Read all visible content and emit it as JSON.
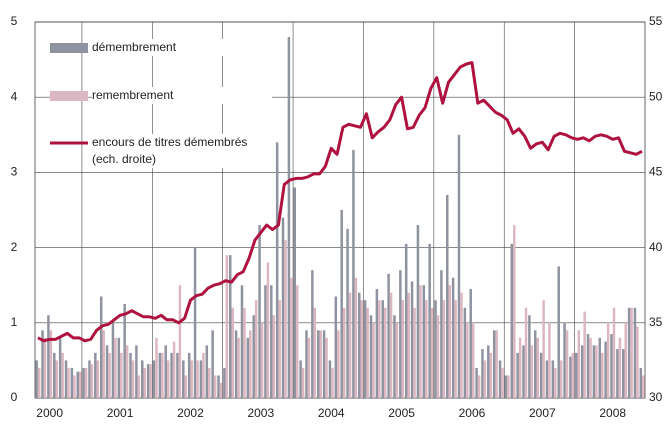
{
  "chart_data": {
    "type": "bar",
    "categories": [
      null,
      null,
      "2000",
      null,
      null,
      null,
      null,
      null,
      null,
      null,
      null,
      null,
      null,
      null,
      "2001",
      null,
      null,
      null,
      null,
      null,
      null,
      null,
      null,
      null,
      null,
      null,
      "2002",
      null,
      null,
      null,
      null,
      null,
      null,
      null,
      null,
      null,
      null,
      null,
      "2003",
      null,
      null,
      null,
      null,
      null,
      null,
      null,
      null,
      null,
      null,
      null,
      "2004",
      null,
      null,
      null,
      null,
      null,
      null,
      null,
      null,
      null,
      null,
      null,
      "2005",
      null,
      null,
      null,
      null,
      null,
      null,
      null,
      null,
      null,
      null,
      null,
      "2006",
      null,
      null,
      null,
      null,
      null,
      null,
      null,
      null,
      null,
      null,
      null,
      "2007",
      null,
      null,
      null,
      null,
      null,
      null,
      null,
      null,
      null,
      null,
      null,
      "2008",
      null,
      null,
      null,
      null,
      null
    ],
    "series": [
      {
        "name": "démembrement",
        "color": "#8e939f",
        "values": [
          0.5,
          0.9,
          1.1,
          0.6,
          0.8,
          0.5,
          0.4,
          0.35,
          0.4,
          0.5,
          0.6,
          1.35,
          0.7,
          1.0,
          0.8,
          1.25,
          0.6,
          0.7,
          0.5,
          0.45,
          0.5,
          0.6,
          0.7,
          0.6,
          0.6,
          0.5,
          0.6,
          2.0,
          0.5,
          0.7,
          0.9,
          0.3,
          0.4,
          1.9,
          0.9,
          1.5,
          0.8,
          1.1,
          2.3,
          1.5,
          1.5,
          3.4,
          2.4,
          4.8,
          2.8,
          0.5,
          0.9,
          1.7,
          0.9,
          0.9,
          0.5,
          1.35,
          2.5,
          2.25,
          3.3,
          1.4,
          1.3,
          1.1,
          1.45,
          1.3,
          1.65,
          1.1,
          1.7,
          2.05,
          1.55,
          2.3,
          1.5,
          2.05,
          1.3,
          1.7,
          2.7,
          1.6,
          3.5,
          1.2,
          1.45,
          0.4,
          0.65,
          0.7,
          0.9,
          0.5,
          0.3,
          2.05,
          0.6,
          0.7,
          1.1,
          0.9,
          0.6,
          0.5,
          0.5,
          1.75,
          1.0,
          0.55,
          0.6,
          0.7,
          0.85,
          0.7,
          0.8,
          0.75,
          0.85,
          0.65,
          0.65,
          1.2,
          1.2,
          0.4
        ]
      },
      {
        "name": "remembrement",
        "color": "#dcb7c1",
        "values": [
          0.4,
          0.8,
          0.9,
          0.5,
          0.6,
          0.4,
          0.3,
          0.35,
          0.4,
          0.45,
          0.5,
          0.9,
          0.6,
          0.8,
          0.6,
          0.7,
          0.5,
          0.3,
          0.4,
          0.45,
          0.8,
          0.6,
          0.5,
          0.75,
          1.5,
          0.3,
          0.5,
          0.5,
          0.6,
          0.4,
          0.3,
          0.2,
          1.9,
          1.2,
          0.8,
          1.2,
          0.9,
          1.3,
          1.0,
          1.8,
          1.1,
          1.3,
          2.1,
          1.6,
          1.5,
          0.4,
          0.8,
          1.2,
          0.9,
          0.8,
          0.4,
          0.9,
          1.2,
          1.4,
          1.6,
          1.3,
          1.2,
          1.0,
          1.3,
          1.2,
          1.4,
          1.0,
          1.3,
          1.4,
          1.2,
          1.5,
          1.3,
          1.2,
          1.1,
          1.3,
          1.5,
          1.3,
          1.4,
          1.0,
          1.0,
          0.3,
          0.5,
          0.6,
          0.9,
          0.4,
          0.3,
          2.3,
          0.8,
          1.2,
          0.7,
          0.8,
          1.3,
          1.0,
          0.4,
          0.5,
          0.9,
          0.6,
          0.9,
          1.15,
          0.8,
          0.7,
          0.6,
          1.0,
          1.2,
          0.8,
          1.0,
          1.2,
          0.95,
          0.3
        ]
      },
      {
        "name": "encours de titres démembrés (ech. droite)",
        "color": "#b0123f",
        "type": "line",
        "axis": "y2",
        "values": [
          34.0,
          33.8,
          33.9,
          33.9,
          34.1,
          34.3,
          34.0,
          34.0,
          33.8,
          33.9,
          34.5,
          34.8,
          34.9,
          35.2,
          35.5,
          35.6,
          35.8,
          35.6,
          35.4,
          35.4,
          35.3,
          35.5,
          35.2,
          35.2,
          35.0,
          35.3,
          36.5,
          36.8,
          36.9,
          37.3,
          37.5,
          37.6,
          37.8,
          37.7,
          38.2,
          38.4,
          39.3,
          40.5,
          41.0,
          41.5,
          41.2,
          41.5,
          44.2,
          44.5,
          44.6,
          44.6,
          44.7,
          44.9,
          44.9,
          45.4,
          46.6,
          46.2,
          48.0,
          48.2,
          48.1,
          48.0,
          48.9,
          47.3,
          47.7,
          48.0,
          48.5,
          49.5,
          50.0,
          47.9,
          48.0,
          48.8,
          49.3,
          50.6,
          51.3,
          49.6,
          51.0,
          51.5,
          52.0,
          52.2,
          52.3,
          49.6,
          49.8,
          49.4,
          49.0,
          48.8,
          48.5,
          47.6,
          47.9,
          47.4,
          46.6,
          46.9,
          47.0,
          46.5,
          47.4,
          47.6,
          47.5,
          47.3,
          47.2,
          47.3,
          47.1,
          47.4,
          47.5,
          47.4,
          47.2,
          47.3,
          46.4,
          46.3,
          46.2,
          46.4
        ]
      }
    ],
    "ylim": [
      0,
      5
    ],
    "yticks": [
      0,
      1,
      2,
      3,
      4,
      5
    ],
    "y2lim": [
      30,
      55
    ],
    "y2ticks": [
      30,
      35,
      40,
      45,
      50,
      55
    ],
    "grid": true
  }
}
